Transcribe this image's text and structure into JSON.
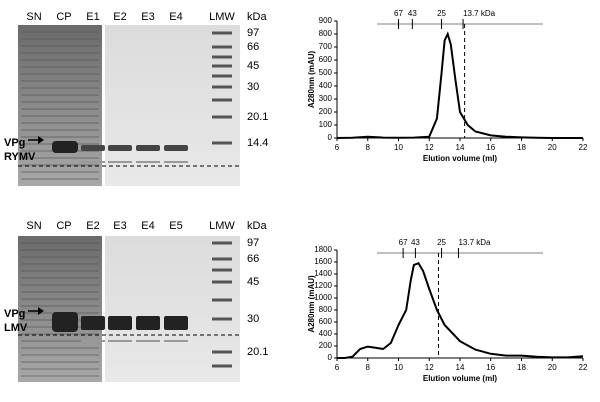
{
  "gels": [
    {
      "lanes": [
        "SN",
        "CP",
        "E1",
        "E2",
        "E3",
        "E4",
        "LMW"
      ],
      "unit": "kDa",
      "mw": [
        "97",
        "66",
        "45",
        "30",
        "20.1",
        "14.4"
      ],
      "arrow_label": [
        "VPg",
        "RYMV"
      ]
    },
    {
      "lanes": [
        "SN",
        "CP",
        "E2",
        "E3",
        "E4",
        "E5",
        "LMW"
      ],
      "unit": "kDa",
      "mw": [
        "97",
        "66",
        "45",
        "30",
        "20.1"
      ],
      "arrow_label": [
        "VPg",
        "LMV"
      ]
    }
  ],
  "chart_data": [
    {
      "type": "line",
      "xlabel": "Elution volume (ml)",
      "ylabel": "A280nm (mAU)",
      "x": [
        6,
        7,
        8,
        9,
        10,
        11,
        12,
        12.5,
        12.8,
        13,
        13.2,
        13.4,
        13.7,
        14,
        14.5,
        15,
        16,
        17,
        18,
        19,
        20,
        22
      ],
      "series": [
        {
          "color": "#000000",
          "values": [
            0,
            2,
            10,
            3,
            2,
            3,
            10,
            150,
            500,
            750,
            800,
            720,
            450,
            200,
            100,
            50,
            20,
            10,
            5,
            2,
            0,
            0
          ]
        }
      ],
      "xlim": [
        6,
        22
      ],
      "xticks": [
        6,
        8,
        10,
        12,
        14,
        16,
        18,
        20,
        22
      ],
      "ylim": [
        0,
        900
      ],
      "yticks": [
        0,
        100,
        200,
        300,
        400,
        500,
        600,
        700,
        800,
        900
      ],
      "markers": {
        "labels": [
          "67",
          "43",
          "25",
          "13.7 kDa"
        ],
        "x": [
          10.0,
          10.9,
          12.8,
          14.2
        ]
      },
      "dashed_x": 14.3
    },
    {
      "type": "line",
      "xlabel": "Elution volume (ml)",
      "ylabel": "A280nm (mAU)",
      "x": [
        6,
        6.5,
        7,
        7.5,
        8,
        8.5,
        9,
        9.5,
        10,
        10.5,
        10.8,
        11,
        11.3,
        11.6,
        12,
        12.5,
        13,
        14,
        15,
        16,
        17,
        18,
        19,
        20,
        21,
        22
      ],
      "series": [
        {
          "color": "#000000",
          "values": [
            0,
            0,
            20,
            150,
            190,
            170,
            150,
            250,
            550,
            800,
            1300,
            1550,
            1580,
            1450,
            1150,
            800,
            550,
            280,
            140,
            70,
            40,
            40,
            20,
            10,
            10,
            30
          ]
        }
      ],
      "xlim": [
        6,
        22
      ],
      "xticks": [
        6,
        8,
        10,
        12,
        14,
        16,
        18,
        20,
        22
      ],
      "ylim": [
        0,
        1800
      ],
      "yticks": [
        0,
        200,
        400,
        600,
        800,
        1000,
        1200,
        1400,
        1600,
        1800
      ],
      "markers": {
        "labels": [
          "67",
          "43",
          "25",
          "13.7 kDa"
        ],
        "x": [
          10.3,
          11.1,
          12.8,
          13.9
        ]
      },
      "dashed_x": 12.6
    }
  ]
}
